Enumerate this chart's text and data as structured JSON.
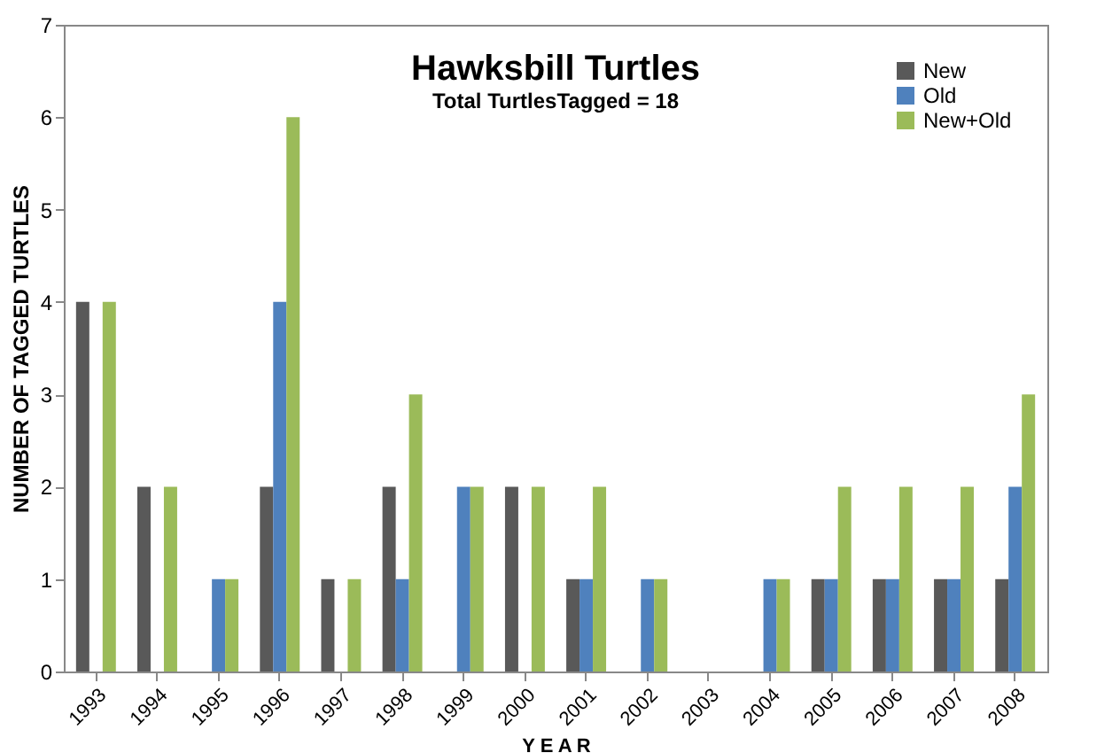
{
  "chart_data": {
    "type": "bar",
    "title": "Hawksbill Turtles",
    "subtitle": "Total TurtlesTagged = 18",
    "xlabel": "Y E A R",
    "ylabel": "NUMBER OF TAGGED TURTLES",
    "categories": [
      "1993",
      "1994",
      "1995",
      "1996",
      "1997",
      "1998",
      "1999",
      "2000",
      "2001",
      "2002",
      "2003",
      "2004",
      "2005",
      "2006",
      "2007",
      "2008"
    ],
    "series": [
      {
        "name": "New",
        "color": "#595959",
        "values": [
          4,
          2,
          0,
          2,
          1,
          2,
          0,
          2,
          1,
          0,
          0,
          0,
          1,
          1,
          1,
          1
        ]
      },
      {
        "name": "Old",
        "color": "#4f81bd",
        "values": [
          0,
          0,
          1,
          4,
          0,
          1,
          2,
          0,
          1,
          1,
          0,
          1,
          1,
          1,
          1,
          2
        ]
      },
      {
        "name": "New+Old",
        "color": "#9bbb59",
        "values": [
          4,
          2,
          1,
          6,
          1,
          3,
          2,
          2,
          2,
          1,
          0,
          1,
          2,
          2,
          2,
          3
        ]
      }
    ],
    "ylim": [
      0,
      7
    ],
    "yticks": [
      0,
      1,
      2,
      3,
      4,
      5,
      6,
      7
    ],
    "grid": false,
    "legend": "top right"
  }
}
